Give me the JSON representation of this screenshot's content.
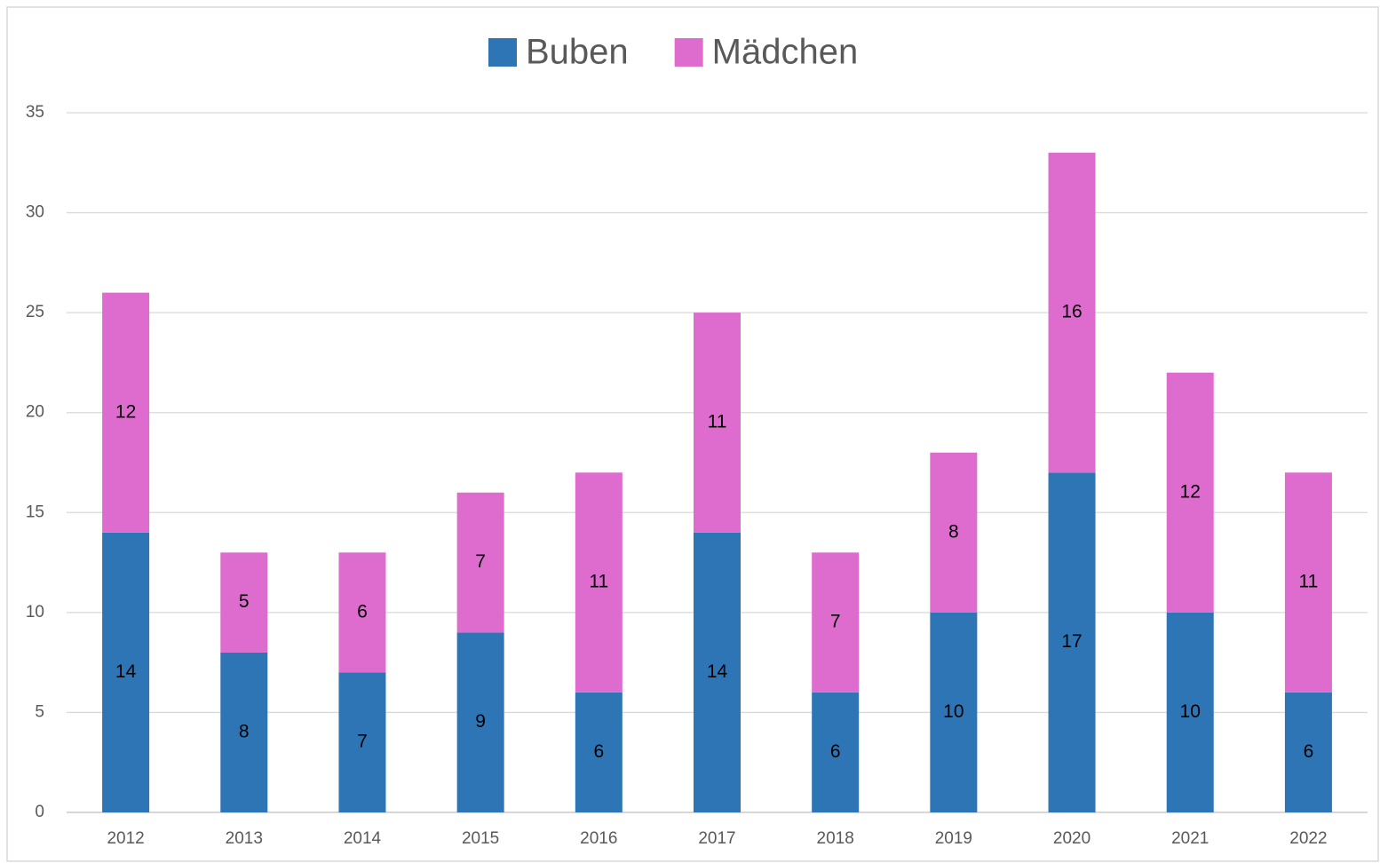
{
  "chart_data": {
    "type": "stacked_bar",
    "categories": [
      "2012",
      "2013",
      "2014",
      "2015",
      "2016",
      "2017",
      "2018",
      "2019",
      "2020",
      "2021",
      "2022"
    ],
    "series": [
      {
        "name": "Buben",
        "color": "#2e75b6",
        "values": [
          14,
          8,
          7,
          9,
          6,
          14,
          6,
          10,
          17,
          10,
          6
        ]
      },
      {
        "name": "Mädchen",
        "color": "#de6ccf",
        "values": [
          12,
          5,
          6,
          7,
          11,
          11,
          7,
          8,
          16,
          12,
          11
        ]
      }
    ],
    "ylim": [
      0,
      35
    ],
    "yticks": [
      0,
      5,
      10,
      15,
      20,
      25,
      30,
      35
    ],
    "grid": true,
    "legend": "top"
  }
}
